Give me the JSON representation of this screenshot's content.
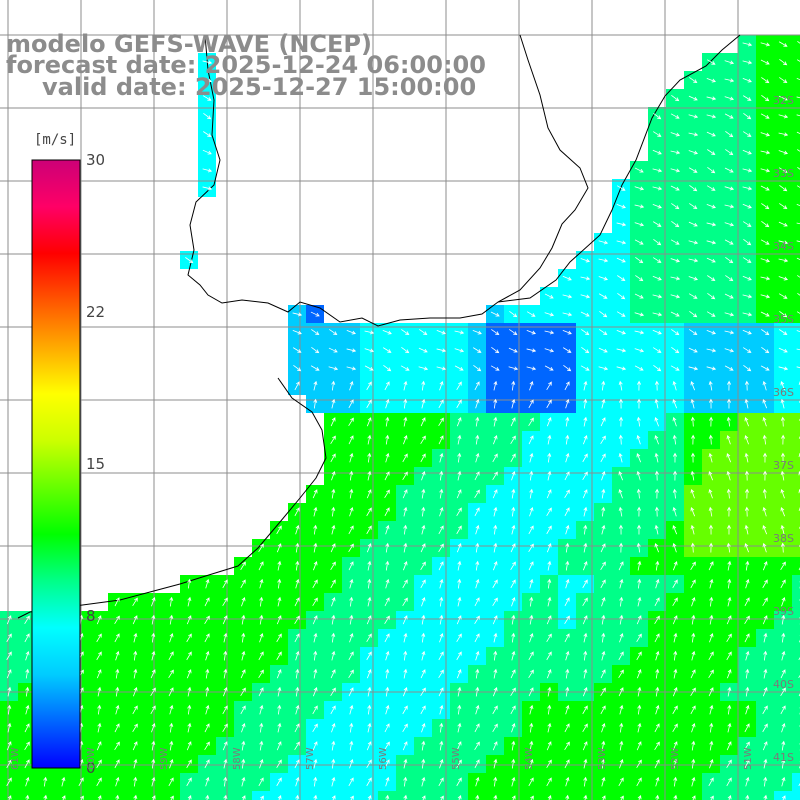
{
  "title": {
    "line1": "modelo GEFS-WAVE (NCEP)",
    "line2": "forecast date: 2025-12-24 06:00:00",
    "line3": "valid date: 2025-12-27 15:00:00"
  },
  "colorbar": {
    "unit": "[m/s]",
    "ticks": [
      "30",
      "22",
      "15",
      "8",
      "0"
    ],
    "tick_values": [
      30,
      22,
      15,
      8,
      0
    ],
    "min": 0,
    "max": 30,
    "colors": [
      "#0000ff",
      "#0066ff",
      "#00ccff",
      "#00ffff",
      "#00ff88",
      "#00ff00",
      "#66ff00",
      "#ccff00",
      "#ffff00",
      "#ffaa00",
      "#ff5500",
      "#ff0000",
      "#ff0066",
      "#cc0077"
    ]
  },
  "map": {
    "lat_labels": [
      "32S",
      "33S",
      "34S",
      "35S",
      "36S",
      "37S",
      "38S",
      "39S",
      "40S",
      "41S"
    ],
    "lon_labels": [
      "61W",
      "60W",
      "59W",
      "58W",
      "57W",
      "56W",
      "55W",
      "54W",
      "53W",
      "52W",
      "51W"
    ],
    "land_color": "#ffffff",
    "grid_color": "#8c8c8c",
    "arrow_color": "#ffffff"
  }
}
